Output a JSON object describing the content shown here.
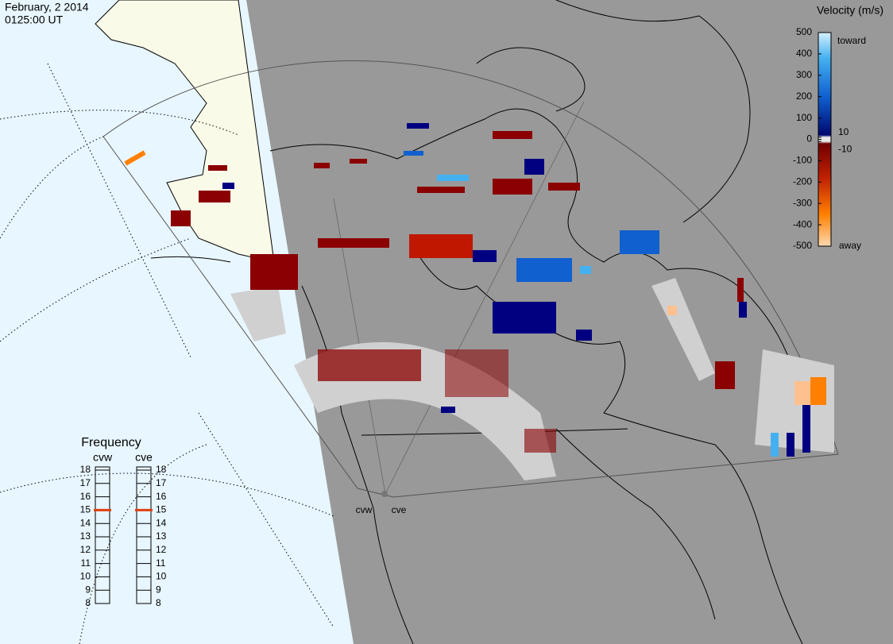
{
  "header": {
    "date": "February, 2 2014",
    "time": "0125:00 UT"
  },
  "velocity_scale": {
    "title": "Velocity (m/s)",
    "ticks": [
      500,
      400,
      300,
      200,
      100,
      10,
      0,
      -10,
      -100,
      -200,
      -300,
      -400,
      -500
    ],
    "range": [
      -500,
      500
    ],
    "toward": "toward",
    "away": "away"
  },
  "frequency": {
    "title": "Frequency",
    "ticks": [
      8,
      9,
      10,
      11,
      12,
      13,
      14,
      15,
      16,
      17,
      18
    ],
    "range": [
      8,
      18
    ],
    "radars": [
      {
        "name": "cvw",
        "value": 15
      },
      {
        "name": "cve",
        "value": 15
      }
    ]
  }
}
